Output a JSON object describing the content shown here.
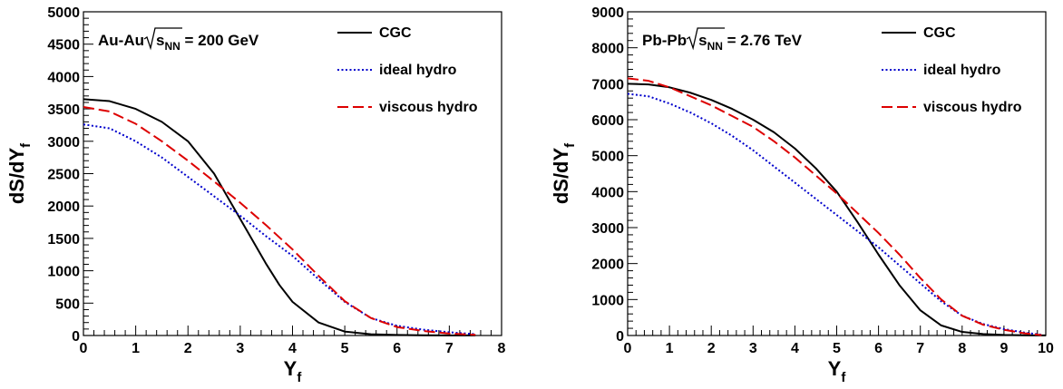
{
  "chart_data": [
    {
      "type": "line",
      "annotation": {
        "system": "Au-Au",
        "sqrt": "s",
        "sub": "NN",
        "energy": "= 200 GeV"
      },
      "ylabel": {
        "main": "dS/dY",
        "sub": "f"
      },
      "xlabel": {
        "main": "Y",
        "sub": "f"
      },
      "xlim": [
        0,
        8
      ],
      "ylim": [
        0,
        5000
      ],
      "xticks": [
        "0",
        "1",
        "2",
        "3",
        "4",
        "5",
        "6",
        "7",
        "8"
      ],
      "yticks": [
        "0",
        "500",
        "1000",
        "1500",
        "2000",
        "2500",
        "3000",
        "3500",
        "4000",
        "4500",
        "5000"
      ],
      "legend_position": "top-right",
      "series": [
        {
          "name": "CGC",
          "color": "#000000",
          "dash": "solid",
          "x": [
            0,
            0.5,
            1,
            1.5,
            2,
            2.5,
            3,
            3.25,
            3.5,
            3.75,
            4,
            4.5,
            5,
            5.5,
            6,
            6.5,
            7,
            7.5
          ],
          "y": [
            3650,
            3620,
            3500,
            3300,
            3000,
            2500,
            1800,
            1450,
            1100,
            780,
            520,
            200,
            60,
            20,
            8,
            4,
            2,
            1
          ]
        },
        {
          "name": "ideal hydro",
          "color": "#0000cc",
          "dash": "dotted",
          "x": [
            0,
            0.5,
            1,
            1.5,
            2,
            2.5,
            3,
            3.5,
            4,
            4.5,
            5,
            5.5,
            6,
            6.5,
            7,
            7.5
          ],
          "y": [
            3260,
            3200,
            3000,
            2750,
            2450,
            2150,
            1850,
            1530,
            1230,
            870,
            520,
            270,
            150,
            90,
            50,
            20
          ]
        },
        {
          "name": "viscous hydro",
          "color": "#dd0000",
          "dash": "dashed",
          "x": [
            0,
            0.5,
            1,
            1.5,
            2,
            2.5,
            3,
            3.5,
            4,
            4.5,
            5,
            5.5,
            6,
            6.5,
            7,
            7.5
          ],
          "y": [
            3530,
            3460,
            3270,
            3000,
            2700,
            2380,
            2050,
            1700,
            1330,
            920,
            530,
            270,
            130,
            70,
            30,
            10
          ]
        }
      ]
    },
    {
      "type": "line",
      "annotation": {
        "system": "Pb-Pb",
        "sqrt": "s",
        "sub": "NN",
        "energy": "= 2.76 TeV"
      },
      "ylabel": {
        "main": "dS/dY",
        "sub": "f"
      },
      "xlabel": {
        "main": "Y",
        "sub": "f"
      },
      "xlim": [
        0,
        10
      ],
      "ylim": [
        0,
        9000
      ],
      "xticks": [
        "0",
        "1",
        "2",
        "3",
        "4",
        "5",
        "6",
        "7",
        "8",
        "9",
        "10"
      ],
      "yticks": [
        "0",
        "1000",
        "2000",
        "3000",
        "4000",
        "5000",
        "6000",
        "7000",
        "8000",
        "9000"
      ],
      "legend_position": "top-right",
      "series": [
        {
          "name": "CGC",
          "color": "#000000",
          "dash": "solid",
          "x": [
            0,
            0.5,
            1,
            1.5,
            2,
            2.5,
            3,
            3.5,
            4,
            4.5,
            5,
            5.5,
            6,
            6.5,
            7,
            7.5,
            8,
            8.5,
            9,
            9.5,
            10
          ],
          "y": [
            7000,
            6980,
            6900,
            6750,
            6550,
            6300,
            6000,
            5650,
            5200,
            4650,
            4000,
            3150,
            2250,
            1400,
            700,
            280,
            100,
            40,
            15,
            6,
            2
          ]
        },
        {
          "name": "ideal hydro",
          "color": "#0000cc",
          "dash": "dotted",
          "x": [
            0,
            0.5,
            1,
            1.5,
            2,
            2.5,
            3,
            3.5,
            4,
            4.5,
            5,
            5.5,
            6,
            6.5,
            7,
            7.5,
            8,
            8.5,
            9,
            9.5,
            9.9
          ],
          "y": [
            6720,
            6650,
            6450,
            6200,
            5900,
            5550,
            5150,
            4700,
            4250,
            3800,
            3350,
            2900,
            2450,
            1950,
            1450,
            950,
            550,
            320,
            180,
            80,
            20
          ]
        },
        {
          "name": "viscous hydro",
          "color": "#dd0000",
          "dash": "dashed",
          "x": [
            0,
            0.5,
            1,
            1.5,
            2,
            2.5,
            3,
            3.5,
            4,
            4.5,
            5,
            5.5,
            6,
            6.5,
            7,
            7.5,
            8,
            8.5,
            9,
            9.5,
            9.9
          ],
          "y": [
            7150,
            7080,
            6900,
            6650,
            6400,
            6100,
            5800,
            5400,
            4950,
            4450,
            3950,
            3400,
            2850,
            2250,
            1600,
            1000,
            550,
            300,
            160,
            60,
            10
          ]
        }
      ]
    }
  ]
}
